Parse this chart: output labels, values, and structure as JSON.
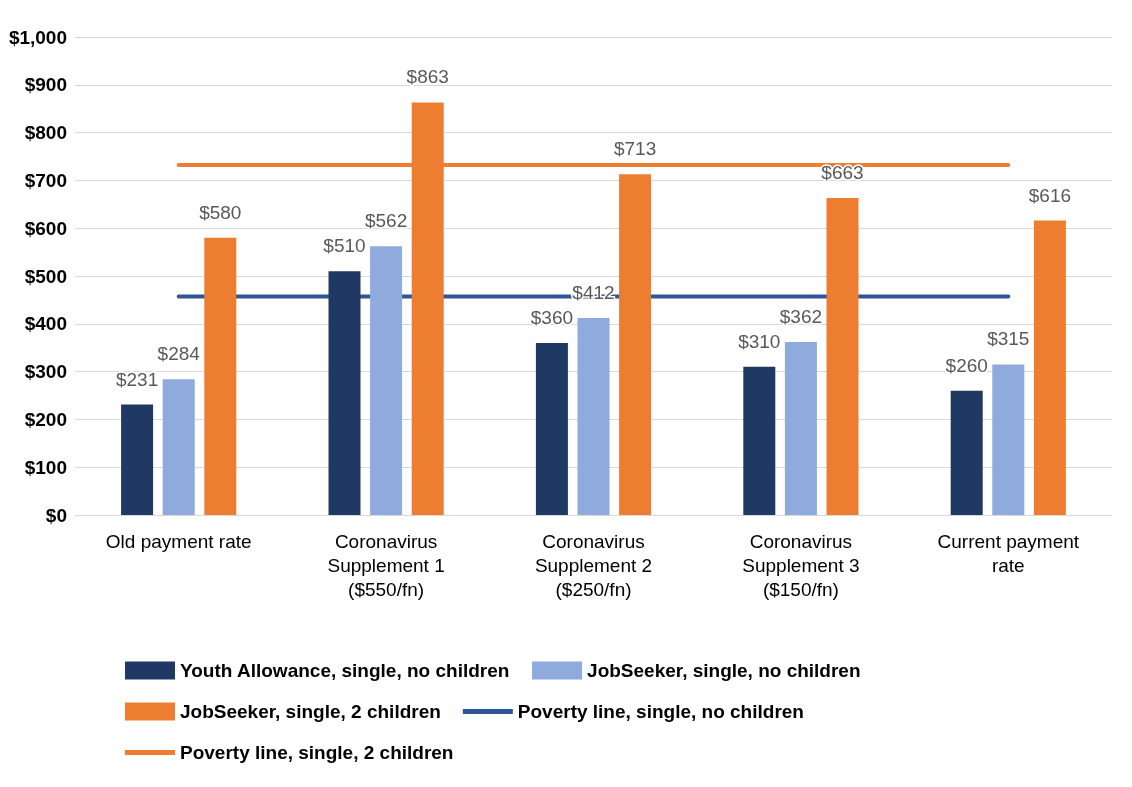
{
  "chart_data": {
    "type": "bar",
    "categories": [
      "Old payment rate",
      "Coronavirus\nSupplement 1\n($550/fn)",
      "Coronavirus\nSupplement 2\n($250/fn)",
      "Coronavirus\nSupplement 3\n($150/fn)",
      "Current payment\nrate"
    ],
    "series": [
      {
        "name": "Youth Allowance, single, no children",
        "color": "#203864",
        "values": [
          231,
          510,
          360,
          310,
          260
        ],
        "value_labels": [
          "$231",
          "$510",
          "$360",
          "$310",
          "$260"
        ]
      },
      {
        "name": "JobSeeker, single, no children",
        "color": "#8faadc",
        "values": [
          284,
          562,
          412,
          362,
          315
        ],
        "value_labels": [
          "$284",
          "$562",
          "$412",
          "$362",
          "$315"
        ]
      },
      {
        "name": "JobSeeker, single, 2 children",
        "color": "#ed7d31",
        "values": [
          580,
          863,
          713,
          663,
          616
        ],
        "value_labels": [
          "$580",
          "$863",
          "$713",
          "$663",
          "$616"
        ]
      },
      {
        "name": "Poverty line, single, no children",
        "type": "line",
        "color": "#2f5597",
        "values": [
          457,
          457,
          457,
          457,
          457
        ]
      },
      {
        "name": "Poverty line, single, 2 children",
        "type": "line",
        "color": "#ed7d31",
        "values": [
          732,
          732,
          732,
          732,
          732
        ]
      }
    ],
    "ylim": [
      0,
      1000
    ],
    "yticks": [
      {
        "value": 0,
        "label": "$0"
      },
      {
        "value": 100,
        "label": "$100"
      },
      {
        "value": 200,
        "label": "$200"
      },
      {
        "value": 300,
        "label": "$300"
      },
      {
        "value": 400,
        "label": "$400"
      },
      {
        "value": 500,
        "label": "$500"
      },
      {
        "value": 600,
        "label": "$600"
      },
      {
        "value": 700,
        "label": "$700"
      },
      {
        "value": 800,
        "label": "$800"
      },
      {
        "value": 900,
        "label": "$900"
      },
      {
        "value": 1000,
        "label": "$1,000"
      }
    ],
    "grid": "y",
    "legend": "bottom",
    "marker": "none"
  }
}
